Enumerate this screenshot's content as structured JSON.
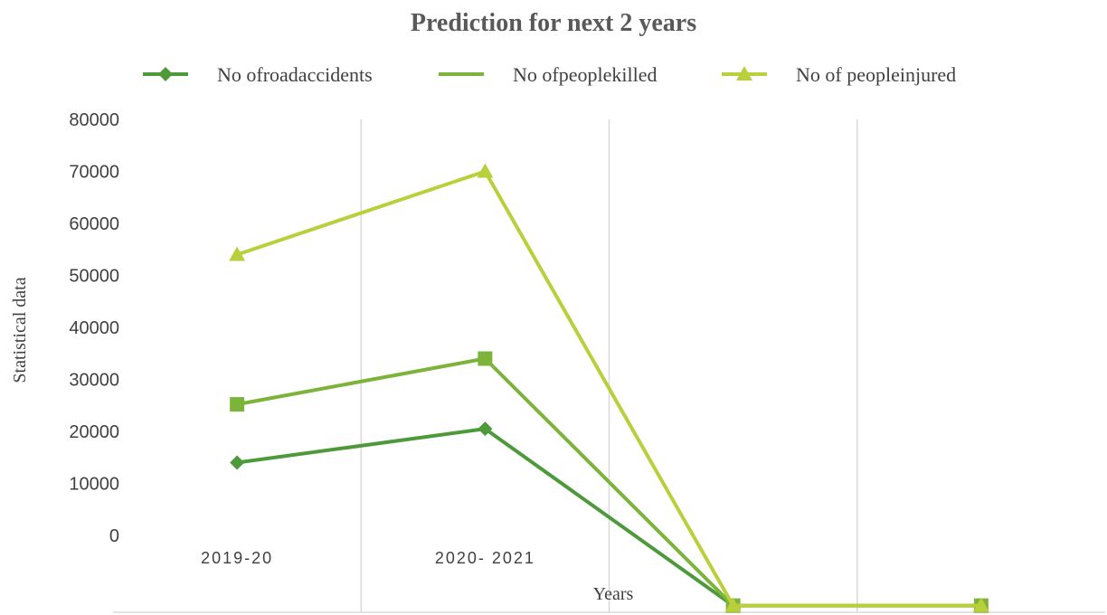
{
  "chart_data": {
    "type": "line",
    "title": "Prediction  for next  2 years",
    "xlabel": "Years",
    "ylabel": "Statistical data",
    "categories": [
      "2019-20",
      "2020- 2021",
      "",
      ""
    ],
    "series": [
      {
        "name": "No ofroadaccidents",
        "values": [
          14000,
          20500,
          -13500,
          -13500
        ],
        "color": "#4e9a3a",
        "marker": "diamond"
      },
      {
        "name": "No ofpeoplekilled",
        "values": [
          25200,
          34000,
          -13500,
          -13500
        ],
        "color": "#7cb33a",
        "marker": "square"
      },
      {
        "name": "No of peopleinjured",
        "values": [
          54000,
          70000,
          -13500,
          -13500
        ],
        "color": "#b9cf3c",
        "marker": "triangle"
      }
    ],
    "yticks": [
      "80000",
      "70000",
      "60000",
      "50000",
      "40000",
      "30000",
      "20000",
      "10000",
      "0"
    ],
    "ylim": [
      -14000,
      80000
    ],
    "grid": "vertical",
    "legend": "top"
  }
}
